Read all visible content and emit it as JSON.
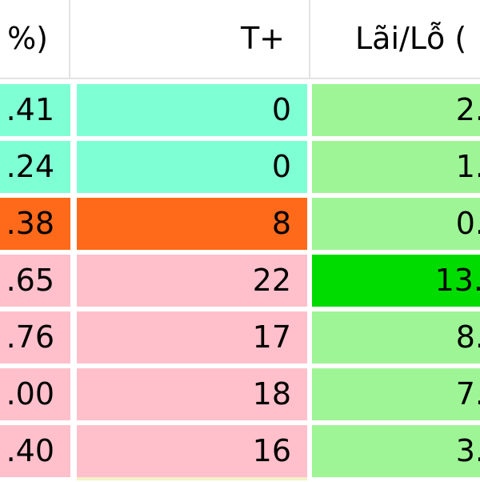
{
  "colors": {
    "cyan": "#7fffd4",
    "orange": "#ff6a1a",
    "pink": "#ffc0cb",
    "light_green": "#9ef596",
    "bright_green": "#00dc00",
    "header_border": "#e3e3e3"
  },
  "table": {
    "headers": [
      "%)",
      "T+",
      "Lãi/Lỗ ("
    ],
    "rows": [
      {
        "pct": ".41",
        "t_plus": "0",
        "pnl": "2.",
        "pct_color": "#7fffd4",
        "t_color": "#7fffd4",
        "pnl_color": "#9ef596"
      },
      {
        "pct": ".24",
        "t_plus": "0",
        "pnl": "1.",
        "pct_color": "#7fffd4",
        "t_color": "#7fffd4",
        "pnl_color": "#9ef596"
      },
      {
        "pct": ".38",
        "t_plus": "8",
        "pnl": "0.",
        "pct_color": "#ff6a1a",
        "t_color": "#ff6a1a",
        "pnl_color": "#9ef596"
      },
      {
        "pct": ".65",
        "t_plus": "22",
        "pnl": "13.",
        "pct_color": "#ffc0cb",
        "t_color": "#ffc0cb",
        "pnl_color": "#00dc00"
      },
      {
        "pct": ".76",
        "t_plus": "17",
        "pnl": "8.",
        "pct_color": "#ffc0cb",
        "t_color": "#ffc0cb",
        "pnl_color": "#9ef596"
      },
      {
        "pct": ".00",
        "t_plus": "18",
        "pnl": "7.",
        "pct_color": "#ffc0cb",
        "t_color": "#ffc0cb",
        "pnl_color": "#9ef596"
      },
      {
        "pct": ".40",
        "t_plus": "16",
        "pnl": "3.",
        "pct_color": "#ffc0cb",
        "t_color": "#ffc0cb",
        "pnl_color": "#9ef596"
      }
    ]
  }
}
